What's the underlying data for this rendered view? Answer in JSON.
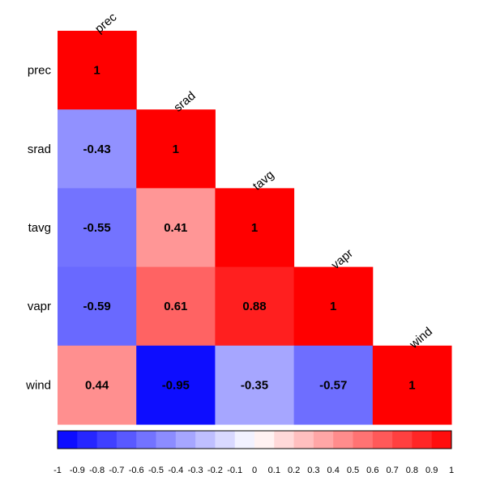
{
  "chart_data": {
    "type": "heatmap",
    "variables": [
      "prec",
      "srad",
      "tavg",
      "vapr",
      "wind"
    ],
    "matrix": [
      [
        1,
        null,
        null,
        null,
        null
      ],
      [
        -0.43,
        1,
        null,
        null,
        null
      ],
      [
        -0.55,
        0.41,
        1,
        null,
        null
      ],
      [
        -0.59,
        0.61,
        0.88,
        1,
        null
      ],
      [
        0.44,
        -0.95,
        -0.35,
        -0.57,
        1
      ]
    ],
    "labels": [
      [
        "1",
        "",
        "",
        "",
        ""
      ],
      [
        "-0.43",
        "1",
        "",
        "",
        ""
      ],
      [
        "-0.55",
        "0.41",
        "1",
        "",
        ""
      ],
      [
        "-0.59",
        "0.61",
        "0.88",
        "1",
        ""
      ],
      [
        "0.44",
        "-0.95",
        "-0.35",
        "-0.57",
        "1"
      ]
    ],
    "colorbar": {
      "range": [
        -1,
        1
      ],
      "ticks": [
        "-1",
        "-0.9",
        "-0.8",
        "-0.7",
        "-0.6",
        "-0.5",
        "-0.4",
        "-0.3",
        "-0.2",
        "-0.1",
        "0",
        "0.1",
        "0.2",
        "0.3",
        "0.4",
        "0.5",
        "0.6",
        "0.7",
        "0.8",
        "0.9",
        "1"
      ],
      "low_color": "#0000ff",
      "mid_color": "#ffffff",
      "high_color": "#ff0000"
    },
    "layout": "lower-triangle",
    "legend_position": "bottom"
  }
}
